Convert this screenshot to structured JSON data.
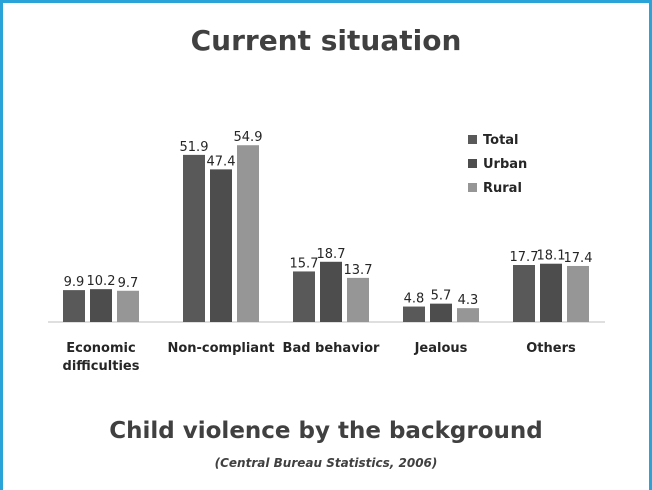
{
  "slide": {
    "title": "Current situation",
    "chart_title": "Child violence by the background",
    "source": "(Central Bureau Statistics, 2006)"
  },
  "chart_data": {
    "type": "bar",
    "categories": [
      [
        "Economic",
        "difficulties"
      ],
      [
        "Non-compliant"
      ],
      [
        "Bad behavior"
      ],
      [
        "Jealous"
      ],
      [
        "Others"
      ]
    ],
    "series": [
      {
        "name": "Total",
        "color": "#595959",
        "values": [
          9.9,
          51.9,
          15.7,
          4.8,
          17.7
        ]
      },
      {
        "name": "Urban",
        "color": "#4d4d4d",
        "values": [
          10.2,
          47.4,
          18.7,
          5.7,
          18.1
        ]
      },
      {
        "name": "Rural",
        "color": "#969696",
        "values": [
          9.7,
          54.9,
          13.7,
          4.3,
          17.4
        ]
      }
    ],
    "ylim": [
      0,
      60
    ],
    "grid": false,
    "legend_position": "top-right"
  }
}
